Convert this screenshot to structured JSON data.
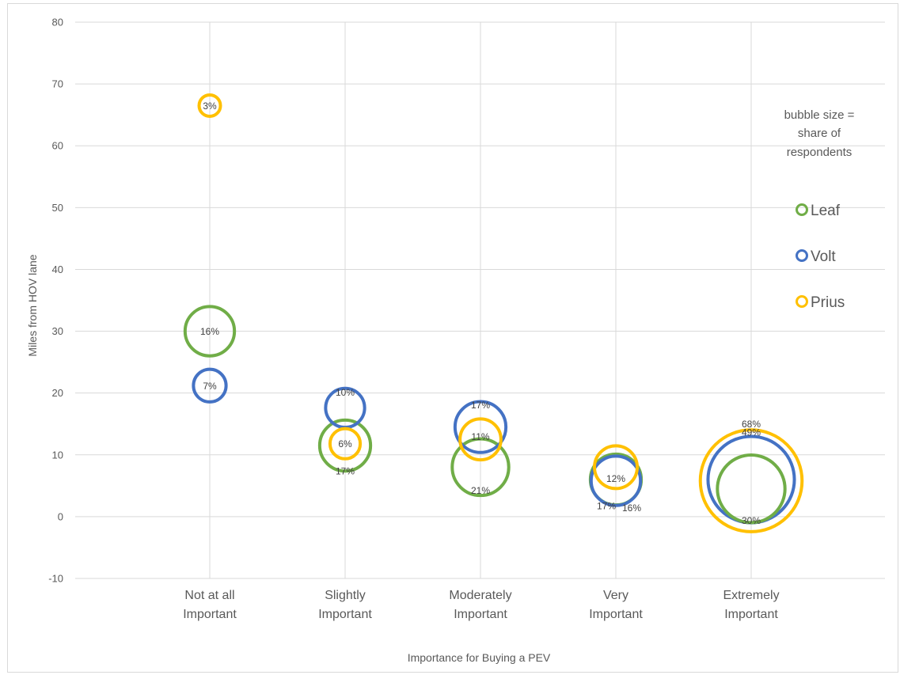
{
  "chart_data": {
    "type": "bubble",
    "xlabel": "Importance for Buying a PEV",
    "ylabel": "Miles from HOV lane",
    "ylim": [
      -10,
      80
    ],
    "yticks": [
      -10,
      0,
      10,
      20,
      30,
      40,
      50,
      60,
      70,
      80
    ],
    "categories": [
      [
        "Not at all",
        "Important"
      ],
      [
        "Slightly",
        "Important"
      ],
      [
        "Moderately",
        "Important"
      ],
      [
        "Very",
        "Important"
      ],
      [
        "Extremely",
        "Important"
      ]
    ],
    "grid": {
      "horizontal": true,
      "vertical": true
    },
    "note": [
      "bubble size =",
      "share of",
      "respondents"
    ],
    "legend_position": "right",
    "series": [
      {
        "name": "Leaf",
        "color": "#70ad47",
        "points": [
          {
            "category": 0,
            "y": 30,
            "share": 16,
            "label": "16%"
          },
          {
            "category": 1,
            "y": 11.5,
            "share": 17,
            "label": "17%"
          },
          {
            "category": 2,
            "y": 8,
            "share": 21,
            "label": "21%"
          },
          {
            "category": 3,
            "y": 6,
            "share": 17,
            "label": "17%"
          },
          {
            "category": 4,
            "y": 4.5,
            "share": 30,
            "label": "30%"
          }
        ]
      },
      {
        "name": "Volt",
        "color": "#4472c4",
        "points": [
          {
            "category": 0,
            "y": 21.2,
            "share": 7,
            "label": "7%"
          },
          {
            "category": 1,
            "y": 17.6,
            "share": 10,
            "label": "10%"
          },
          {
            "category": 2,
            "y": 14.5,
            "share": 17,
            "label": "17%"
          },
          {
            "category": 3,
            "y": 5.8,
            "share": 16,
            "label": "16%"
          },
          {
            "category": 4,
            "y": 6,
            "share": 49,
            "label": "49%"
          }
        ]
      },
      {
        "name": "Prius",
        "color": "#ffc000",
        "points": [
          {
            "category": 0,
            "y": 66.5,
            "share": 3,
            "label": "3%"
          },
          {
            "category": 1,
            "y": 11.8,
            "share": 6,
            "label": "6%"
          },
          {
            "category": 2,
            "y": 12.5,
            "share": 11,
            "label": "11%"
          },
          {
            "category": 3,
            "y": 8,
            "share": 12,
            "label": "12%"
          },
          {
            "category": 4,
            "y": 5.8,
            "share": 68,
            "label": "68%"
          }
        ]
      }
    ]
  }
}
